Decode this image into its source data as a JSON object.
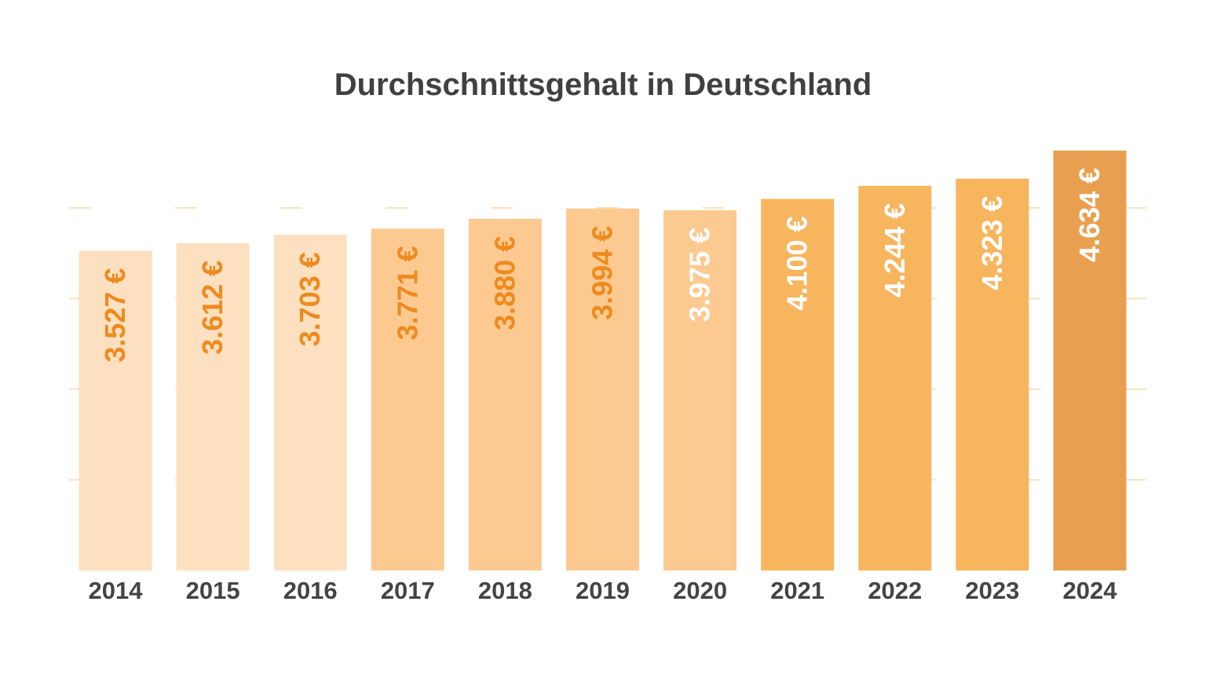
{
  "chart_data": {
    "type": "bar",
    "title": "Durchschnittsgehalt in Deutschland",
    "xlabel": "",
    "ylabel": "",
    "categories": [
      "2014",
      "2015",
      "2016",
      "2017",
      "2018",
      "2019",
      "2020",
      "2021",
      "2022",
      "2023",
      "2024"
    ],
    "values": [
      3527,
      3612,
      3703,
      3771,
      3880,
      3994,
      3975,
      4100,
      4244,
      4323,
      4634
    ],
    "data_labels": [
      "3.527 €",
      "3.612 €",
      "3.703 €",
      "3.771 €",
      "3.880 €",
      "3.994 €",
      "3.975 €",
      "4.100 €",
      "4.244 €",
      "4.323 €",
      "4.634 €"
    ],
    "ylim": [
      0,
      5000
    ],
    "gridlines": [
      1000,
      2000,
      3000,
      4000
    ],
    "grid": true,
    "legend": "none",
    "bar_colors": [
      "#fde0c0",
      "#fde0c0",
      "#fde0c0",
      "#fcca90",
      "#fcca90",
      "#fcca90",
      "#fcca90",
      "#f7b55e",
      "#f7b55e",
      "#f7b55e",
      "#e8a050"
    ],
    "label_colors": [
      "#ee8a1e",
      "#ee8a1e",
      "#ee8a1e",
      "#ee8a1e",
      "#ee8a1e",
      "#ee8a1e",
      "#ffffff",
      "#ffffff",
      "#ffffff",
      "#ffffff",
      "#ffffff"
    ],
    "gridline_color": "#fbd9b4",
    "tick_label_color": "#444444",
    "title_color": "#404040"
  }
}
